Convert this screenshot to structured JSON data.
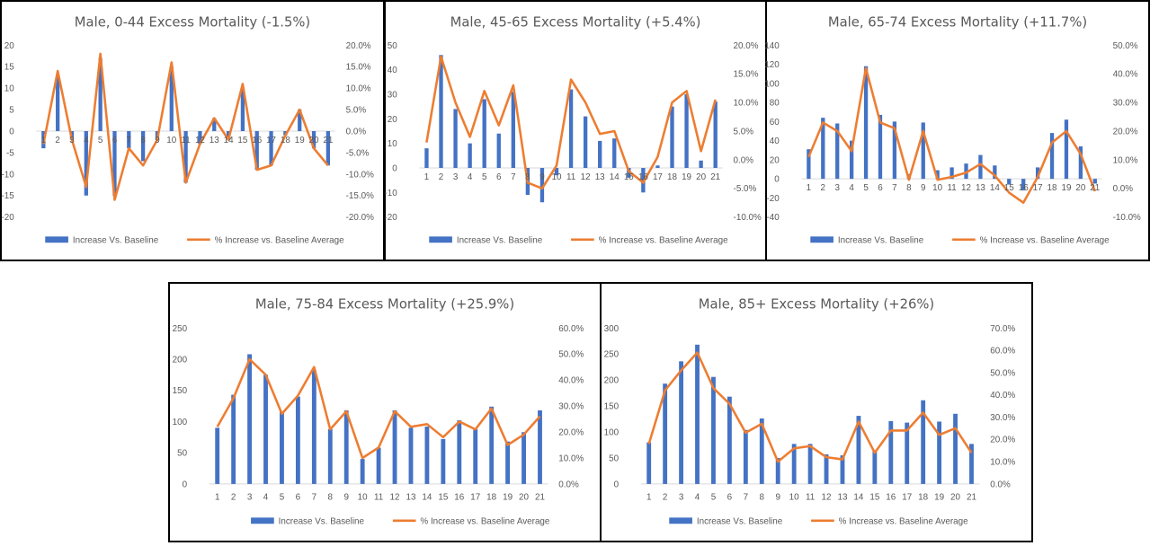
{
  "colors": {
    "bar": "#4472C4",
    "line": "#ED7D31",
    "text": "#595959",
    "axis": "#D9D9D9"
  },
  "legend": {
    "bar_label": "Increase Vs. Baseline",
    "line_label": "% Increase vs. Baseline Average"
  },
  "chart_data": [
    {
      "type": "bar",
      "title": "Male, 0-44 Excess Mortality (-1.5%)",
      "categories": [
        "1",
        "2",
        "3",
        "4",
        "5",
        "6",
        "7",
        "8",
        "9",
        "10",
        "11",
        "12",
        "13",
        "14",
        "15",
        "16",
        "17",
        "18",
        "19",
        "20",
        "21"
      ],
      "ylim": [
        -20,
        20
      ],
      "yticks": [
        "20",
        "15",
        "10",
        "5",
        "0",
        "-5",
        "-10",
        "-15",
        "-20"
      ],
      "y2lim": [
        -20,
        20
      ],
      "y2ticks": [
        "20.0%",
        "15.0%",
        "10.0%",
        "5.0%",
        "0.0%",
        "-5.0%",
        "-10.0%",
        "-15.0%",
        "-20.0%"
      ],
      "series": [
        {
          "name": "Increase Vs. Baseline",
          "kind": "bar",
          "axis": "left",
          "values": [
            -4,
            13,
            -2,
            -15,
            17,
            -15,
            -4,
            -7,
            -2,
            15,
            -12,
            -3,
            3,
            -2,
            10,
            -9,
            -8,
            -1,
            5,
            -4,
            -8
          ]
        },
        {
          "name": "% Increase vs. Baseline Average",
          "kind": "line",
          "axis": "right",
          "values": [
            -3,
            14,
            -2,
            -13,
            18,
            -16,
            -4,
            -8,
            -2,
            16,
            -12,
            -3,
            3,
            -2,
            11,
            -9,
            -8,
            -1,
            5,
            -4,
            -8
          ]
        }
      ]
    },
    {
      "type": "bar",
      "title": "Male, 45-65 Excess Mortality (+5.4%)",
      "categories": [
        "1",
        "2",
        "3",
        "4",
        "5",
        "6",
        "7",
        "8",
        "9",
        "10",
        "11",
        "12",
        "13",
        "14",
        "15",
        "16",
        "17",
        "18",
        "19",
        "20",
        "21"
      ],
      "ylim": [
        -20,
        50
      ],
      "yticks": [
        "50",
        "40",
        "30",
        "20",
        "10",
        "0",
        "-10",
        "-20"
      ],
      "y2lim": [
        -10,
        20
      ],
      "y2ticks": [
        "20.0%",
        "15.0%",
        "10.0%",
        "5.0%",
        "0.0%",
        "-5.0%",
        "-10.0%"
      ],
      "series": [
        {
          "name": "Increase Vs. Baseline",
          "kind": "bar",
          "axis": "left",
          "values": [
            8,
            46,
            24,
            10,
            28,
            14,
            31,
            -11,
            -14,
            -3,
            32,
            21,
            11,
            12,
            -4,
            -10,
            1,
            25,
            30,
            3,
            27
          ]
        },
        {
          "name": "% Increase vs. Baseline Average",
          "kind": "line",
          "axis": "right",
          "values": [
            3,
            18,
            10,
            4,
            12,
            6,
            13,
            -4,
            -5,
            -1,
            14,
            10,
            4.5,
            5,
            -2,
            -4,
            0.5,
            10,
            12,
            1.5,
            10.5
          ]
        }
      ]
    },
    {
      "type": "bar",
      "title": "Male, 65-74 Excess Mortality  (+11.7%)",
      "categories": [
        "1",
        "2",
        "3",
        "4",
        "5",
        "6",
        "7",
        "8",
        "9",
        "10",
        "11",
        "12",
        "13",
        "14",
        "15",
        "16",
        "17",
        "18",
        "19",
        "20",
        "21"
      ],
      "ylim": [
        -40,
        140
      ],
      "yticks": [
        "140",
        "120",
        "100",
        "80",
        "60",
        "40",
        "20",
        "0",
        "-20",
        "-40"
      ],
      "y2lim": [
        -10,
        50
      ],
      "y2ticks": [
        "50.0%",
        "40.0%",
        "30.0%",
        "20.0%",
        "10.0%",
        "0.0%",
        "-10.0%"
      ],
      "series": [
        {
          "name": "Increase Vs. Baseline",
          "kind": "bar",
          "axis": "left",
          "values": [
            31,
            64,
            58,
            40,
            118,
            67,
            60,
            5,
            59,
            9,
            12,
            16,
            25,
            14,
            -6,
            -12,
            12,
            48,
            62,
            34,
            -5
          ]
        },
        {
          "name": "% Increase vs. Baseline Average",
          "kind": "line",
          "axis": "right",
          "values": [
            11,
            23,
            20,
            13,
            42,
            23,
            21,
            3,
            20,
            3,
            4,
            5.5,
            8.5,
            4.5,
            -1.5,
            -5,
            4,
            16,
            20,
            12,
            -1
          ]
        }
      ]
    },
    {
      "type": "bar",
      "title": "Male, 75-84 Excess Mortality (+25.9%)",
      "categories": [
        "1",
        "2",
        "3",
        "4",
        "5",
        "6",
        "7",
        "8",
        "9",
        "10",
        "11",
        "12",
        "13",
        "14",
        "15",
        "16",
        "17",
        "18",
        "19",
        "20",
        "21"
      ],
      "ylim": [
        0,
        250
      ],
      "yticks": [
        "250",
        "200",
        "150",
        "100",
        "50",
        "0"
      ],
      "y2lim": [
        0,
        60
      ],
      "y2ticks": [
        "60.0%",
        "50.0%",
        "40.0%",
        "30.0%",
        "20.0%",
        "10.0%",
        "0.0%"
      ],
      "series": [
        {
          "name": "Increase Vs. Baseline",
          "kind": "bar",
          "axis": "left",
          "values": [
            90,
            143,
            208,
            175,
            116,
            140,
            183,
            88,
            118,
            40,
            58,
            118,
            90,
            92,
            72,
            102,
            88,
            124,
            68,
            83,
            118
          ]
        },
        {
          "name": "% Increase vs. Baseline Average",
          "kind": "line",
          "axis": "right",
          "values": [
            22,
            33,
            48,
            42,
            27,
            34,
            45,
            21,
            28,
            10,
            14,
            28,
            22,
            23,
            18,
            24,
            21,
            29,
            15,
            19,
            26
          ]
        }
      ]
    },
    {
      "type": "bar",
      "title": "Male, 85+ Excess Mortality (+26%)",
      "categories": [
        "1",
        "2",
        "3",
        "4",
        "5",
        "6",
        "7",
        "8",
        "9",
        "10",
        "11",
        "12",
        "13",
        "14",
        "15",
        "16",
        "17",
        "18",
        "19",
        "20",
        "21"
      ],
      "ylim": [
        0,
        300
      ],
      "yticks": [
        "300",
        "250",
        "200",
        "150",
        "100",
        "50",
        "0"
      ],
      "y2lim": [
        0,
        70
      ],
      "y2ticks": [
        "70.0%",
        "60.0%",
        "50.0%",
        "40.0%",
        "30.0%",
        "20.0%",
        "10.0%",
        "0.0%"
      ],
      "series": [
        {
          "name": "Increase Vs. Baseline",
          "kind": "bar",
          "axis": "left",
          "values": [
            80,
            193,
            236,
            268,
            206,
            168,
            104,
            126,
            50,
            77,
            77,
            57,
            55,
            131,
            65,
            121,
            118,
            161,
            120,
            135,
            77
          ]
        },
        {
          "name": "% Increase vs. Baseline Average",
          "kind": "line",
          "axis": "right",
          "values": [
            18,
            42,
            51,
            59,
            43,
            36,
            23,
            27,
            10,
            16,
            17,
            12,
            11,
            28,
            14,
            24,
            24,
            32,
            22,
            25,
            14
          ]
        }
      ]
    }
  ]
}
